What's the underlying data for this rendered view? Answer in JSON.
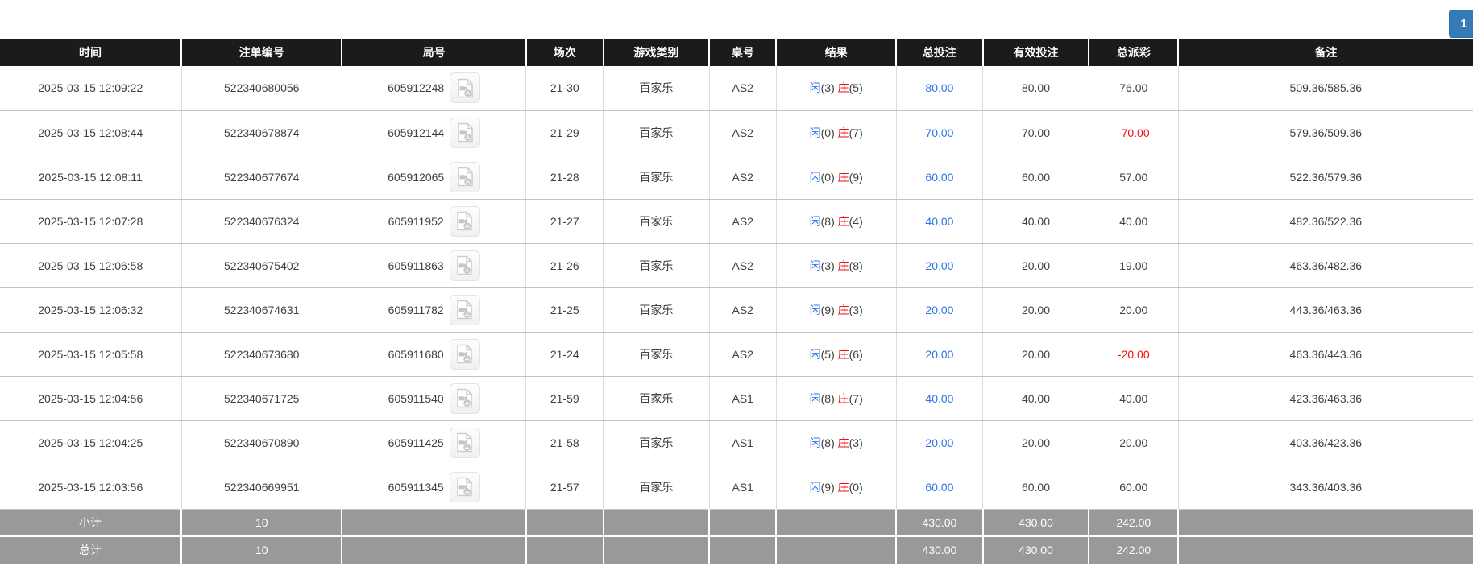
{
  "pagination": {
    "current_page": "1"
  },
  "colors": {
    "header_bg": "#1b1b1b",
    "footer_bg": "#999999",
    "accent_blue": "#2a75e8",
    "accent_red": "#f10e0e",
    "pagination_blue": "#337ab7",
    "row_border": "#c3c3c3"
  },
  "icons": {
    "round_replay": "video-replay-icon"
  },
  "table": {
    "columns": [
      {
        "key": "time",
        "label": "时间",
        "width": "12.31%"
      },
      {
        "key": "bet-id",
        "label": "注单编号",
        "width": "10.91%"
      },
      {
        "key": "round",
        "label": "局号",
        "width": "12.50%"
      },
      {
        "key": "session",
        "label": "场次",
        "width": "5.23%"
      },
      {
        "key": "game-type",
        "label": "游戏类别",
        "width": "7.21%"
      },
      {
        "key": "table-no",
        "label": "桌号",
        "width": "4.53%"
      },
      {
        "key": "result",
        "label": "结果",
        "width": "8.16%"
      },
      {
        "key": "total-bet",
        "label": "总投注",
        "width": "5.87%"
      },
      {
        "key": "valid-bet",
        "label": "有效投注",
        "width": "7.21%"
      },
      {
        "key": "payout",
        "label": "总派彩",
        "width": "6.06%"
      },
      {
        "key": "remark",
        "label": "备注",
        "width": "20.01%"
      }
    ],
    "rows": [
      {
        "time": "2025-03-15 12:09:22",
        "bet_id": "522340680056",
        "round": "605912248",
        "session": "21-30",
        "game_type": "百家乐",
        "table_no": "AS2",
        "result": {
          "player_label": "闲",
          "player_score": "3",
          "banker_label": "庄",
          "banker_score": "5"
        },
        "total_bet": "80.00",
        "valid_bet": "80.00",
        "payout": "76.00",
        "remark": "509.36/585.36"
      },
      {
        "time": "2025-03-15 12:08:44",
        "bet_id": "522340678874",
        "round": "605912144",
        "session": "21-29",
        "game_type": "百家乐",
        "table_no": "AS2",
        "result": {
          "player_label": "闲",
          "player_score": "0",
          "banker_label": "庄",
          "banker_score": "7"
        },
        "total_bet": "70.00",
        "valid_bet": "70.00",
        "payout": "-70.00",
        "remark": "579.36/509.36"
      },
      {
        "time": "2025-03-15 12:08:11",
        "bet_id": "522340677674",
        "round": "605912065",
        "session": "21-28",
        "game_type": "百家乐",
        "table_no": "AS2",
        "result": {
          "player_label": "闲",
          "player_score": "0",
          "banker_label": "庄",
          "banker_score": "9"
        },
        "total_bet": "60.00",
        "valid_bet": "60.00",
        "payout": "57.00",
        "remark": "522.36/579.36"
      },
      {
        "time": "2025-03-15 12:07:28",
        "bet_id": "522340676324",
        "round": "605911952",
        "session": "21-27",
        "game_type": "百家乐",
        "table_no": "AS2",
        "result": {
          "player_label": "闲",
          "player_score": "8",
          "banker_label": "庄",
          "banker_score": "4"
        },
        "total_bet": "40.00",
        "valid_bet": "40.00",
        "payout": "40.00",
        "remark": "482.36/522.36"
      },
      {
        "time": "2025-03-15 12:06:58",
        "bet_id": "522340675402",
        "round": "605911863",
        "session": "21-26",
        "game_type": "百家乐",
        "table_no": "AS2",
        "result": {
          "player_label": "闲",
          "player_score": "3",
          "banker_label": "庄",
          "banker_score": "8"
        },
        "total_bet": "20.00",
        "valid_bet": "20.00",
        "payout": "19.00",
        "remark": "463.36/482.36"
      },
      {
        "time": "2025-03-15 12:06:32",
        "bet_id": "522340674631",
        "round": "605911782",
        "session": "21-25",
        "game_type": "百家乐",
        "table_no": "AS2",
        "result": {
          "player_label": "闲",
          "player_score": "9",
          "banker_label": "庄",
          "banker_score": "3"
        },
        "total_bet": "20.00",
        "valid_bet": "20.00",
        "payout": "20.00",
        "remark": "443.36/463.36"
      },
      {
        "time": "2025-03-15 12:05:58",
        "bet_id": "522340673680",
        "round": "605911680",
        "session": "21-24",
        "game_type": "百家乐",
        "table_no": "AS2",
        "result": {
          "player_label": "闲",
          "player_score": "5",
          "banker_label": "庄",
          "banker_score": "6"
        },
        "total_bet": "20.00",
        "valid_bet": "20.00",
        "payout": "-20.00",
        "remark": "463.36/443.36"
      },
      {
        "time": "2025-03-15 12:04:56",
        "bet_id": "522340671725",
        "round": "605911540",
        "session": "21-59",
        "game_type": "百家乐",
        "table_no": "AS1",
        "result": {
          "player_label": "闲",
          "player_score": "8",
          "banker_label": "庄",
          "banker_score": "7"
        },
        "total_bet": "40.00",
        "valid_bet": "40.00",
        "payout": "40.00",
        "remark": "423.36/463.36"
      },
      {
        "time": "2025-03-15 12:04:25",
        "bet_id": "522340670890",
        "round": "605911425",
        "session": "21-58",
        "game_type": "百家乐",
        "table_no": "AS1",
        "result": {
          "player_label": "闲",
          "player_score": "8",
          "banker_label": "庄",
          "banker_score": "3"
        },
        "total_bet": "20.00",
        "valid_bet": "20.00",
        "payout": "20.00",
        "remark": "403.36/423.36"
      },
      {
        "time": "2025-03-15 12:03:56",
        "bet_id": "522340669951",
        "round": "605911345",
        "session": "21-57",
        "game_type": "百家乐",
        "table_no": "AS1",
        "result": {
          "player_label": "闲",
          "player_score": "9",
          "banker_label": "庄",
          "banker_score": "0"
        },
        "total_bet": "60.00",
        "valid_bet": "60.00",
        "payout": "60.00",
        "remark": "343.36/403.36"
      }
    ],
    "footer_rows": [
      {
        "key": "subtotal",
        "label": "小计",
        "count": "10",
        "total_bet": "430.00",
        "valid_bet": "430.00",
        "payout": "242.00"
      },
      {
        "key": "total",
        "label": "总计",
        "count": "10",
        "total_bet": "430.00",
        "valid_bet": "430.00",
        "payout": "242.00"
      }
    ]
  }
}
